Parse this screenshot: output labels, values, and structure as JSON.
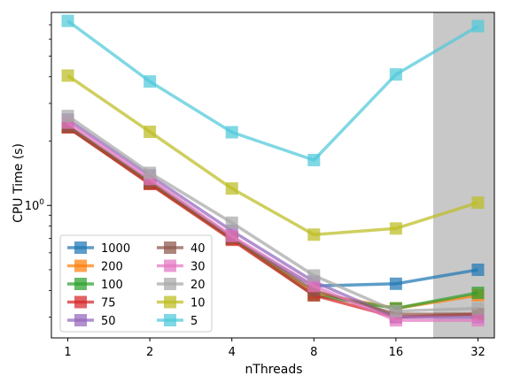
{
  "chart_data": {
    "type": "line",
    "title": "",
    "xlabel": "nThreads",
    "ylabel": "CPU Time (s)",
    "yscale": "log",
    "ylim": [
      0.24,
      8.0
    ],
    "x": [
      1,
      2,
      4,
      8,
      16,
      32
    ],
    "x_tick_labels": [
      "1",
      "2",
      "4",
      "8",
      "16",
      "32"
    ],
    "y_tick_label": "10^0",
    "y_tick_base": "10",
    "y_tick_exp": "0",
    "shaded_region": {
      "from_x": 16,
      "color": "#c8c8c8"
    },
    "grid": false,
    "legend_placement": "lower-left",
    "series": [
      {
        "name": "1000",
        "color": "#1f77b4",
        "values": [
          2.32,
          1.27,
          0.7,
          0.42,
          0.43,
          0.5
        ]
      },
      {
        "name": "200",
        "color": "#ff7f0e",
        "values": [
          2.33,
          1.27,
          0.7,
          0.39,
          0.33,
          0.38
        ]
      },
      {
        "name": "100",
        "color": "#2ca02c",
        "values": [
          2.34,
          1.27,
          0.7,
          0.38,
          0.33,
          0.39
        ]
      },
      {
        "name": "75",
        "color": "#d62728",
        "values": [
          2.32,
          1.26,
          0.69,
          0.38,
          0.3,
          0.31
        ]
      },
      {
        "name": "50",
        "color": "#9467bd",
        "values": [
          2.52,
          1.38,
          0.76,
          0.44,
          0.3,
          0.3
        ]
      },
      {
        "name": "40",
        "color": "#8c564b",
        "values": [
          2.36,
          1.3,
          0.71,
          0.4,
          0.31,
          0.31
        ]
      },
      {
        "name": "30",
        "color": "#e377c2",
        "values": [
          2.44,
          1.33,
          0.72,
          0.42,
          0.29,
          0.29
        ]
      },
      {
        "name": "20",
        "color": "#a8a8a8",
        "values": [
          2.62,
          1.42,
          0.83,
          0.47,
          0.32,
          0.33
        ]
      },
      {
        "name": "10",
        "color": "#bcbd22",
        "values": [
          4.05,
          2.21,
          1.2,
          0.73,
          0.78,
          1.03
        ]
      },
      {
        "name": "5",
        "color": "#4fc9d9",
        "values": [
          7.3,
          3.8,
          2.2,
          1.63,
          4.1,
          6.9
        ]
      }
    ]
  }
}
